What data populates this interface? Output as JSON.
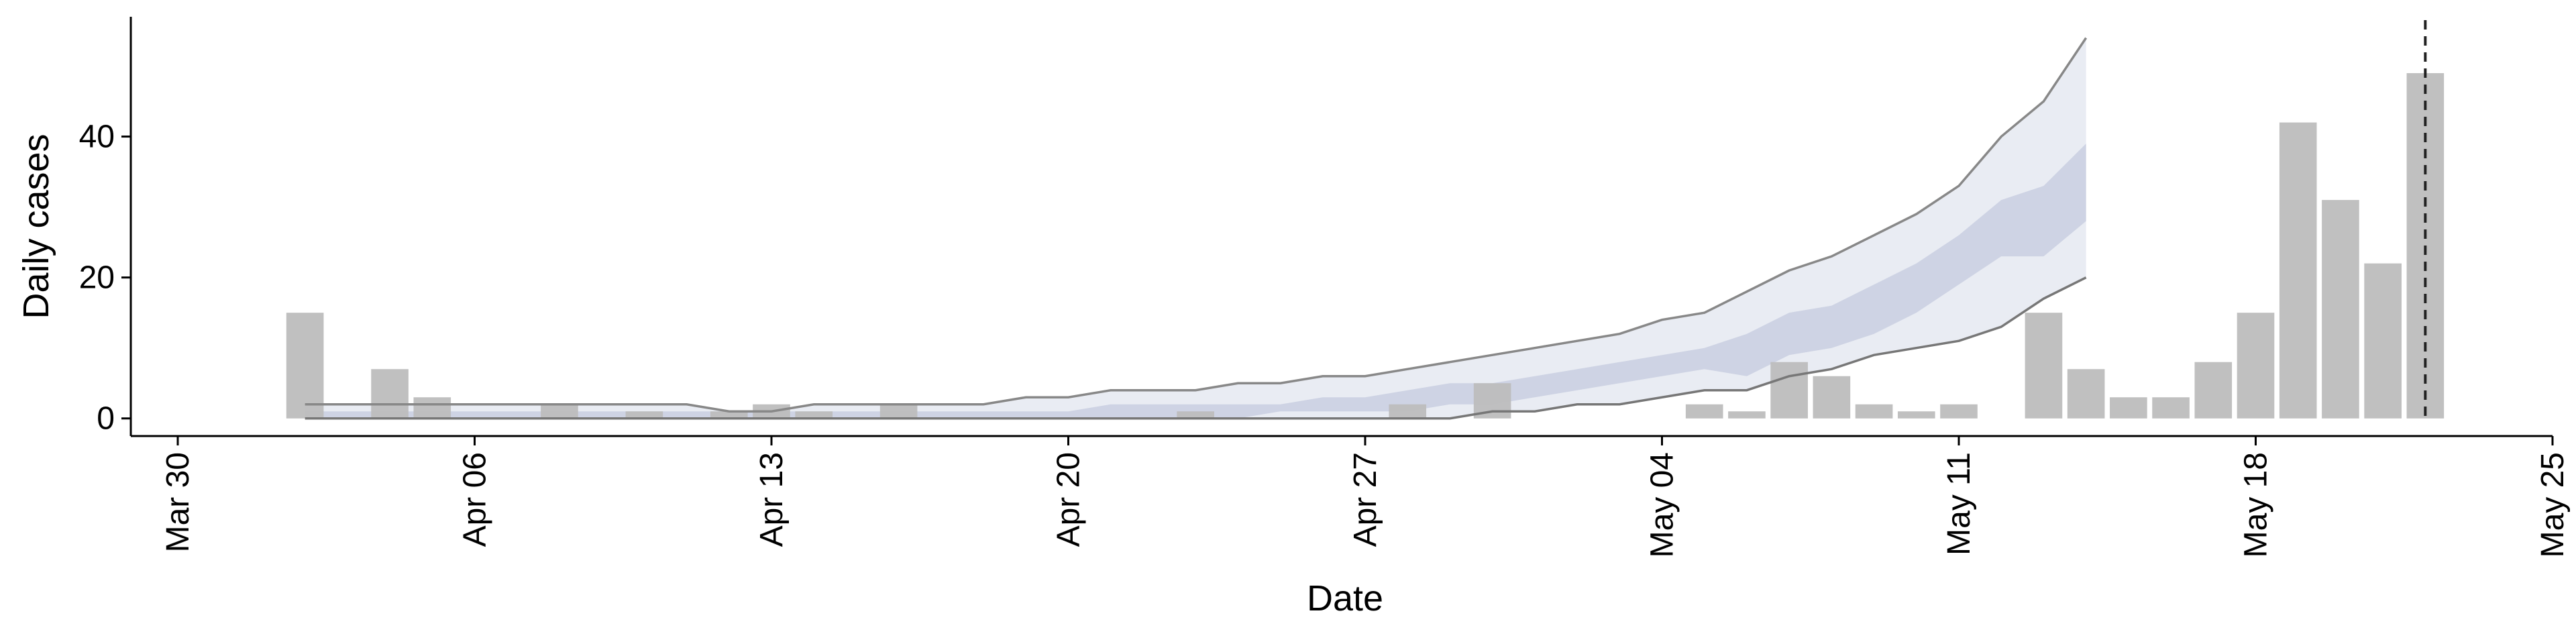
{
  "chart_data": {
    "type": "bar",
    "xlabel": "Date",
    "ylabel": "Daily cases",
    "x_ticks": [
      {
        "date": "2020-03-30",
        "label": "Mar 30"
      },
      {
        "date": "2020-04-06",
        "label": "Apr 06"
      },
      {
        "date": "2020-04-13",
        "label": "Apr 13"
      },
      {
        "date": "2020-04-20",
        "label": "Apr 20"
      },
      {
        "date": "2020-04-27",
        "label": "Apr 27"
      },
      {
        "date": "2020-05-04",
        "label": "May 04"
      },
      {
        "date": "2020-05-11",
        "label": "May 11"
      },
      {
        "date": "2020-05-18",
        "label": "May 18"
      },
      {
        "date": "2020-05-25",
        "label": "May 25"
      }
    ],
    "y_ticks": [
      0,
      20,
      40
    ],
    "xlim": [
      "2020-03-30",
      "2020-05-25"
    ],
    "ylim": [
      -2.5,
      57
    ],
    "grid": false,
    "bars": {
      "color": "#bdbdbd",
      "dates": [
        "2020-04-02",
        "2020-04-04",
        "2020-04-05",
        "2020-04-08",
        "2020-04-10",
        "2020-04-12",
        "2020-04-13",
        "2020-04-14",
        "2020-04-16",
        "2020-04-23",
        "2020-04-28",
        "2020-04-30",
        "2020-05-05",
        "2020-05-06",
        "2020-05-07",
        "2020-05-08",
        "2020-05-09",
        "2020-05-10",
        "2020-05-11",
        "2020-05-13",
        "2020-05-14",
        "2020-05-15",
        "2020-05-16",
        "2020-05-17",
        "2020-05-18",
        "2020-05-19",
        "2020-05-20",
        "2020-05-21",
        "2020-05-22"
      ],
      "values": [
        15,
        7,
        3,
        2,
        1,
        1,
        2,
        1,
        2,
        1,
        2,
        5,
        2,
        1,
        8,
        6,
        2,
        1,
        2,
        15,
        7,
        3,
        3,
        8,
        15,
        42,
        31,
        22,
        49
      ]
    },
    "forecast": {
      "color": "#c9cfe0",
      "dates": [
        "2020-04-02",
        "2020-04-03",
        "2020-04-04",
        "2020-04-05",
        "2020-04-06",
        "2020-04-07",
        "2020-04-08",
        "2020-04-09",
        "2020-04-10",
        "2020-04-11",
        "2020-04-12",
        "2020-04-13",
        "2020-04-14",
        "2020-04-15",
        "2020-04-16",
        "2020-04-17",
        "2020-04-18",
        "2020-04-19",
        "2020-04-20",
        "2020-04-21",
        "2020-04-22",
        "2020-04-23",
        "2020-04-24",
        "2020-04-25",
        "2020-04-26",
        "2020-04-27",
        "2020-04-28",
        "2020-04-29",
        "2020-04-30",
        "2020-05-01",
        "2020-05-02",
        "2020-05-03",
        "2020-05-04",
        "2020-05-05",
        "2020-05-06",
        "2020-05-07",
        "2020-05-08",
        "2020-05-09",
        "2020-05-10",
        "2020-05-11",
        "2020-05-12",
        "2020-05-13",
        "2020-05-14"
      ],
      "upper_90": [
        2,
        2,
        2,
        2,
        2,
        2,
        2,
        2,
        2,
        2,
        1,
        1,
        2,
        2,
        2,
        2,
        2,
        3,
        3,
        4,
        4,
        4,
        5,
        5,
        6,
        6,
        7,
        8,
        9,
        10,
        11,
        12,
        14,
        15,
        18,
        21,
        23,
        26,
        29,
        33,
        40,
        45,
        54
      ],
      "upper_50": [
        1,
        1,
        1,
        1,
        1,
        1,
        1,
        1,
        1,
        1,
        1,
        1,
        1,
        1,
        1,
        1,
        1,
        1,
        1,
        2,
        2,
        2,
        2,
        2,
        3,
        3,
        4,
        5,
        5,
        6,
        7,
        8,
        9,
        10,
        12,
        15,
        16,
        19,
        22,
        26,
        31,
        33,
        39
      ],
      "lower_50": [
        0,
        0,
        0,
        0,
        0,
        0,
        0,
        0,
        0,
        0,
        0,
        0,
        0,
        0,
        0,
        0,
        0,
        0,
        0,
        0,
        0,
        0,
        0,
        1,
        1,
        1,
        1,
        2,
        2,
        3,
        4,
        5,
        6,
        7,
        6,
        9,
        10,
        12,
        15,
        19,
        23,
        23,
        28
      ],
      "lower_90": [
        0,
        0,
        0,
        0,
        0,
        0,
        0,
        0,
        0,
        0,
        0,
        0,
        0,
        0,
        0,
        0,
        0,
        0,
        0,
        0,
        0,
        0,
        0,
        0,
        0,
        0,
        0,
        0,
        1,
        1,
        2,
        2,
        3,
        4,
        4,
        6,
        7,
        9,
        10,
        11,
        13,
        17,
        20
      ]
    },
    "vline": {
      "date": "2020-05-22",
      "style": "dashed"
    }
  }
}
